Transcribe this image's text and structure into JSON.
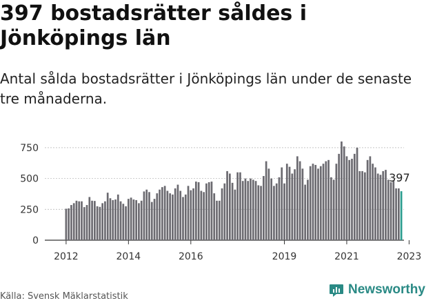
{
  "header": {
    "title": "397 bostadsrätter såldes i Jönköpings län",
    "subtitle": "Antal sålda bostadsrätter i Jönköpings län under de senaste tre månaderna."
  },
  "footer": {
    "source": "Källa: Svensk Mäklarstatistik",
    "brand": "Newsworthy"
  },
  "colors": {
    "bar": "#6b6a70",
    "highlight": "#2a9d8f",
    "gridline": "#bbbbbb",
    "brand": "#2a8a85"
  },
  "chart_data": {
    "type": "bar",
    "title": "397 bostadsrätter såldes i Jönköpings län",
    "subtitle": "Antal sålda bostadsrätter i Jönköpings län under de senaste tre månaderna.",
    "xlabel": "",
    "ylabel": "",
    "ylim": [
      0,
      800
    ],
    "yticks": [
      0,
      250,
      500,
      750
    ],
    "ytick_labels": [
      "0",
      "250",
      "500",
      "750"
    ],
    "xticks": [
      {
        "label": "2012",
        "index": 0
      },
      {
        "label": "2014",
        "index": 24
      },
      {
        "label": "2016",
        "index": 48
      },
      {
        "label": "2019",
        "index": 84
      },
      {
        "label": "2021",
        "index": 108
      },
      {
        "label": "2023",
        "index": 132
      }
    ],
    "start_period": "2012-01",
    "values": [
      255,
      258,
      285,
      300,
      320,
      315,
      315,
      268,
      285,
      350,
      320,
      318,
      275,
      270,
      300,
      315,
      385,
      340,
      325,
      330,
      370,
      315,
      295,
      275,
      335,
      345,
      330,
      325,
      300,
      320,
      395,
      410,
      390,
      310,
      335,
      380,
      410,
      430,
      440,
      400,
      380,
      370,
      420,
      450,
      400,
      350,
      370,
      440,
      405,
      420,
      475,
      470,
      400,
      390,
      460,
      470,
      475,
      380,
      320,
      320,
      420,
      460,
      560,
      540,
      465,
      410,
      550,
      550,
      480,
      500,
      480,
      500,
      490,
      480,
      445,
      440,
      520,
      640,
      580,
      500,
      440,
      460,
      510,
      590,
      460,
      620,
      595,
      540,
      575,
      680,
      640,
      580,
      450,
      490,
      600,
      620,
      610,
      580,
      600,
      620,
      640,
      650,
      510,
      490,
      620,
      700,
      800,
      760,
      680,
      650,
      660,
      700,
      750,
      560,
      560,
      550,
      650,
      680,
      620,
      590,
      540,
      530,
      560,
      570,
      490,
      470,
      480,
      420,
      420,
      397
    ],
    "highlight_index": 129,
    "annotation": {
      "label": "397",
      "index": 129
    }
  }
}
